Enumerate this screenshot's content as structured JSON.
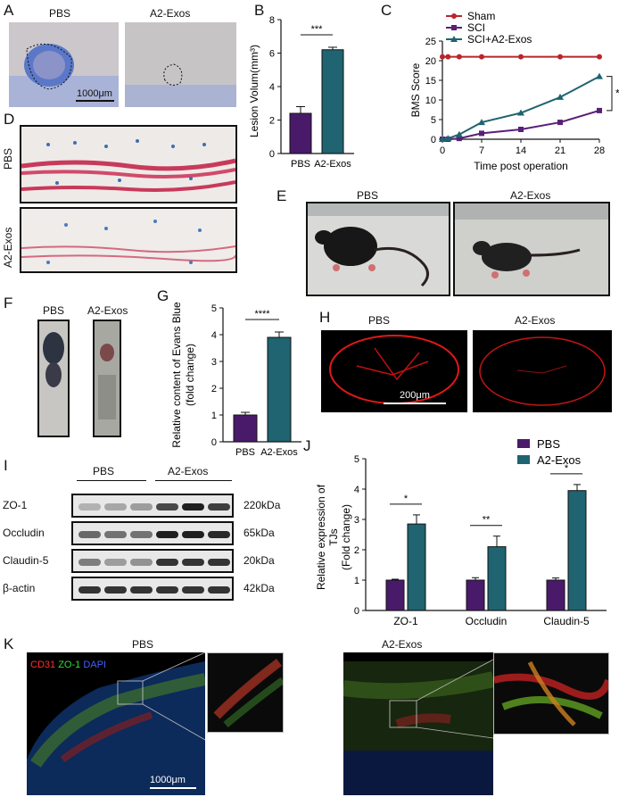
{
  "panels": {
    "A": {
      "letter": "A",
      "left_label": "PBS",
      "right_label": "A2-Exos",
      "scale": "1000μm"
    },
    "B": {
      "letter": "B"
    },
    "C": {
      "letter": "C"
    },
    "D": {
      "letter": "D",
      "row1": "PBS",
      "row2": "A2-Exos"
    },
    "E": {
      "letter": "E",
      "left_label": "PBS",
      "right_label": "A2-Exos"
    },
    "F": {
      "letter": "F",
      "left_label": "PBS",
      "right_label": "A2-Exos"
    },
    "G": {
      "letter": "G"
    },
    "H": {
      "letter": "H",
      "left_label": "PBS",
      "right_label": "A2-Exos",
      "scale": "200μm"
    },
    "I": {
      "letter": "I",
      "group1": "PBS",
      "group2": "A2-Exos",
      "rows": [
        {
          "protein": "ZO-1",
          "kda": "220kDa"
        },
        {
          "protein": "Occludin",
          "kda": "65kDa"
        },
        {
          "protein": "Claudin-5",
          "kda": "20kDa"
        },
        {
          "protein": "β-actin",
          "kda": "42kDa"
        }
      ]
    },
    "J": {
      "letter": "J"
    },
    "K": {
      "letter": "K",
      "left_label": "PBS",
      "right_label": "A2-Exos",
      "stain_cd31": "CD31",
      "stain_zo1": "ZO-1",
      "stain_dapi": "DAPI",
      "scale": "1000μm"
    }
  },
  "chart_data": [
    {
      "id": "B",
      "type": "bar",
      "categories": [
        "PBS",
        "A2-Exos"
      ],
      "values": [
        2.4,
        6.2
      ],
      "errors": [
        0.4,
        0.15
      ],
      "ylabel": "Lesion Volum(mm³)",
      "ylim": [
        0,
        8
      ],
      "yticks": [
        0,
        2,
        4,
        6,
        8
      ],
      "colors": [
        "#4a1a6a",
        "#1f6470"
      ],
      "significance": "***"
    },
    {
      "id": "C",
      "type": "line",
      "x": [
        0,
        1,
        3,
        7,
        14,
        21,
        28
      ],
      "series": [
        {
          "name": "Sham",
          "values": [
            21,
            21,
            21,
            21,
            21,
            21,
            21
          ],
          "color": "#b8262b",
          "marker": "circle"
        },
        {
          "name": "SCI",
          "values": [
            0,
            0,
            0.2,
            1.5,
            2.5,
            4.3,
            7.3
          ],
          "color": "#5a1f78",
          "marker": "square"
        },
        {
          "name": "SCI+A2-Exos",
          "values": [
            0,
            0.2,
            1.2,
            4.3,
            6.7,
            10.7,
            16.0
          ],
          "color": "#1f6470",
          "marker": "triangle"
        }
      ],
      "xlabel": "Time post operation",
      "ylabel": "BMS Score",
      "xlim": [
        0,
        28
      ],
      "ylim": [
        0,
        25
      ],
      "xticks": [
        0,
        7,
        14,
        21,
        28
      ],
      "yticks": [
        0,
        5,
        10,
        15,
        20,
        25
      ],
      "legend": "top",
      "significance": "*"
    },
    {
      "id": "G",
      "type": "bar",
      "categories": [
        "PBS",
        "A2-Exos"
      ],
      "values": [
        1.0,
        3.9
      ],
      "errors": [
        0.1,
        0.2
      ],
      "ylabel_line1": "Relative content of Evans Blue",
      "ylabel_line2": "(fold change)",
      "ylim": [
        0,
        5
      ],
      "yticks": [
        0,
        1,
        2,
        3,
        4,
        5
      ],
      "colors": [
        "#4a1a6a",
        "#1f6470"
      ],
      "significance": "****"
    },
    {
      "id": "J",
      "type": "bar",
      "categories": [
        "ZO-1",
        "Occludin",
        "Claudin-5"
      ],
      "series": [
        {
          "name": "PBS",
          "values": [
            1.0,
            1.0,
            1.0
          ],
          "errors": [
            0.03,
            0.08,
            0.07
          ],
          "color": "#4a1a6a"
        },
        {
          "name": "A2-Exos",
          "values": [
            2.85,
            2.1,
            3.95
          ],
          "errors": [
            0.3,
            0.35,
            0.2
          ],
          "color": "#1f6470"
        }
      ],
      "ylabel_line1": "Relative expression of",
      "ylabel_line2": "TJs",
      "ylabel_line3": "(Fold change)",
      "ylim": [
        0,
        5
      ],
      "yticks": [
        0,
        1,
        2,
        3,
        4,
        5
      ],
      "significance": [
        "*",
        "**",
        "*"
      ],
      "legend": "top-right"
    }
  ]
}
